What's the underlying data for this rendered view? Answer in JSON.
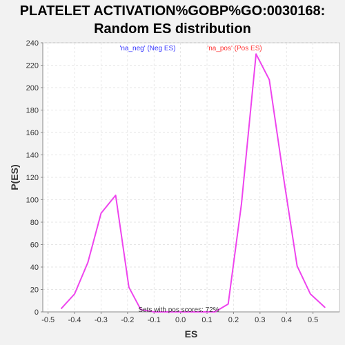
{
  "chart_data": {
    "type": "line",
    "title_line1": "PLATELET ACTIVATION%GOBP%GO:0030168:",
    "title_line2": "Random ES distribution",
    "xlabel": "ES",
    "ylabel": "P(ES)",
    "xlim": [
      -0.52,
      0.6
    ],
    "ylim": [
      0,
      240
    ],
    "x_ticks": [
      -0.5,
      -0.4,
      -0.3,
      -0.2,
      -0.1,
      0.0,
      0.1,
      0.2,
      0.3,
      0.4,
      0.5
    ],
    "x_tick_labels": [
      "-0.5",
      "-0.4",
      "-0.3",
      "-0.2",
      "-0.1",
      "0.0",
      "0.1",
      "0.2",
      "0.3",
      "0.4",
      "0.5"
    ],
    "y_ticks": [
      0,
      20,
      40,
      60,
      80,
      100,
      120,
      140,
      160,
      180,
      200,
      220,
      240
    ],
    "y_tick_labels": [
      "0",
      "20",
      "40",
      "60",
      "80",
      "100",
      "120",
      "140",
      "160",
      "180",
      "200",
      "220",
      "240"
    ],
    "grid": true,
    "legend": [
      {
        "label": "'na_neg' (Neg ES)",
        "color": "#3333ff"
      },
      {
        "label": "'na_pos' (Pos ES)",
        "color": "#ff3333"
      }
    ],
    "annotation": "Sets with pos scores: 72%",
    "series": [
      {
        "color": "#ee44ee",
        "x": [
          -0.45,
          -0.4,
          -0.35,
          -0.3,
          -0.245,
          -0.195,
          -0.15,
          -0.1,
          0.0,
          0.13,
          0.18,
          0.23,
          0.285,
          0.335,
          0.39,
          0.44,
          0.49,
          0.545
        ],
        "y": [
          3,
          16,
          44,
          88,
          104,
          22,
          2,
          0,
          0,
          0,
          7,
          96,
          230,
          207,
          118,
          41,
          16,
          4
        ]
      }
    ]
  }
}
